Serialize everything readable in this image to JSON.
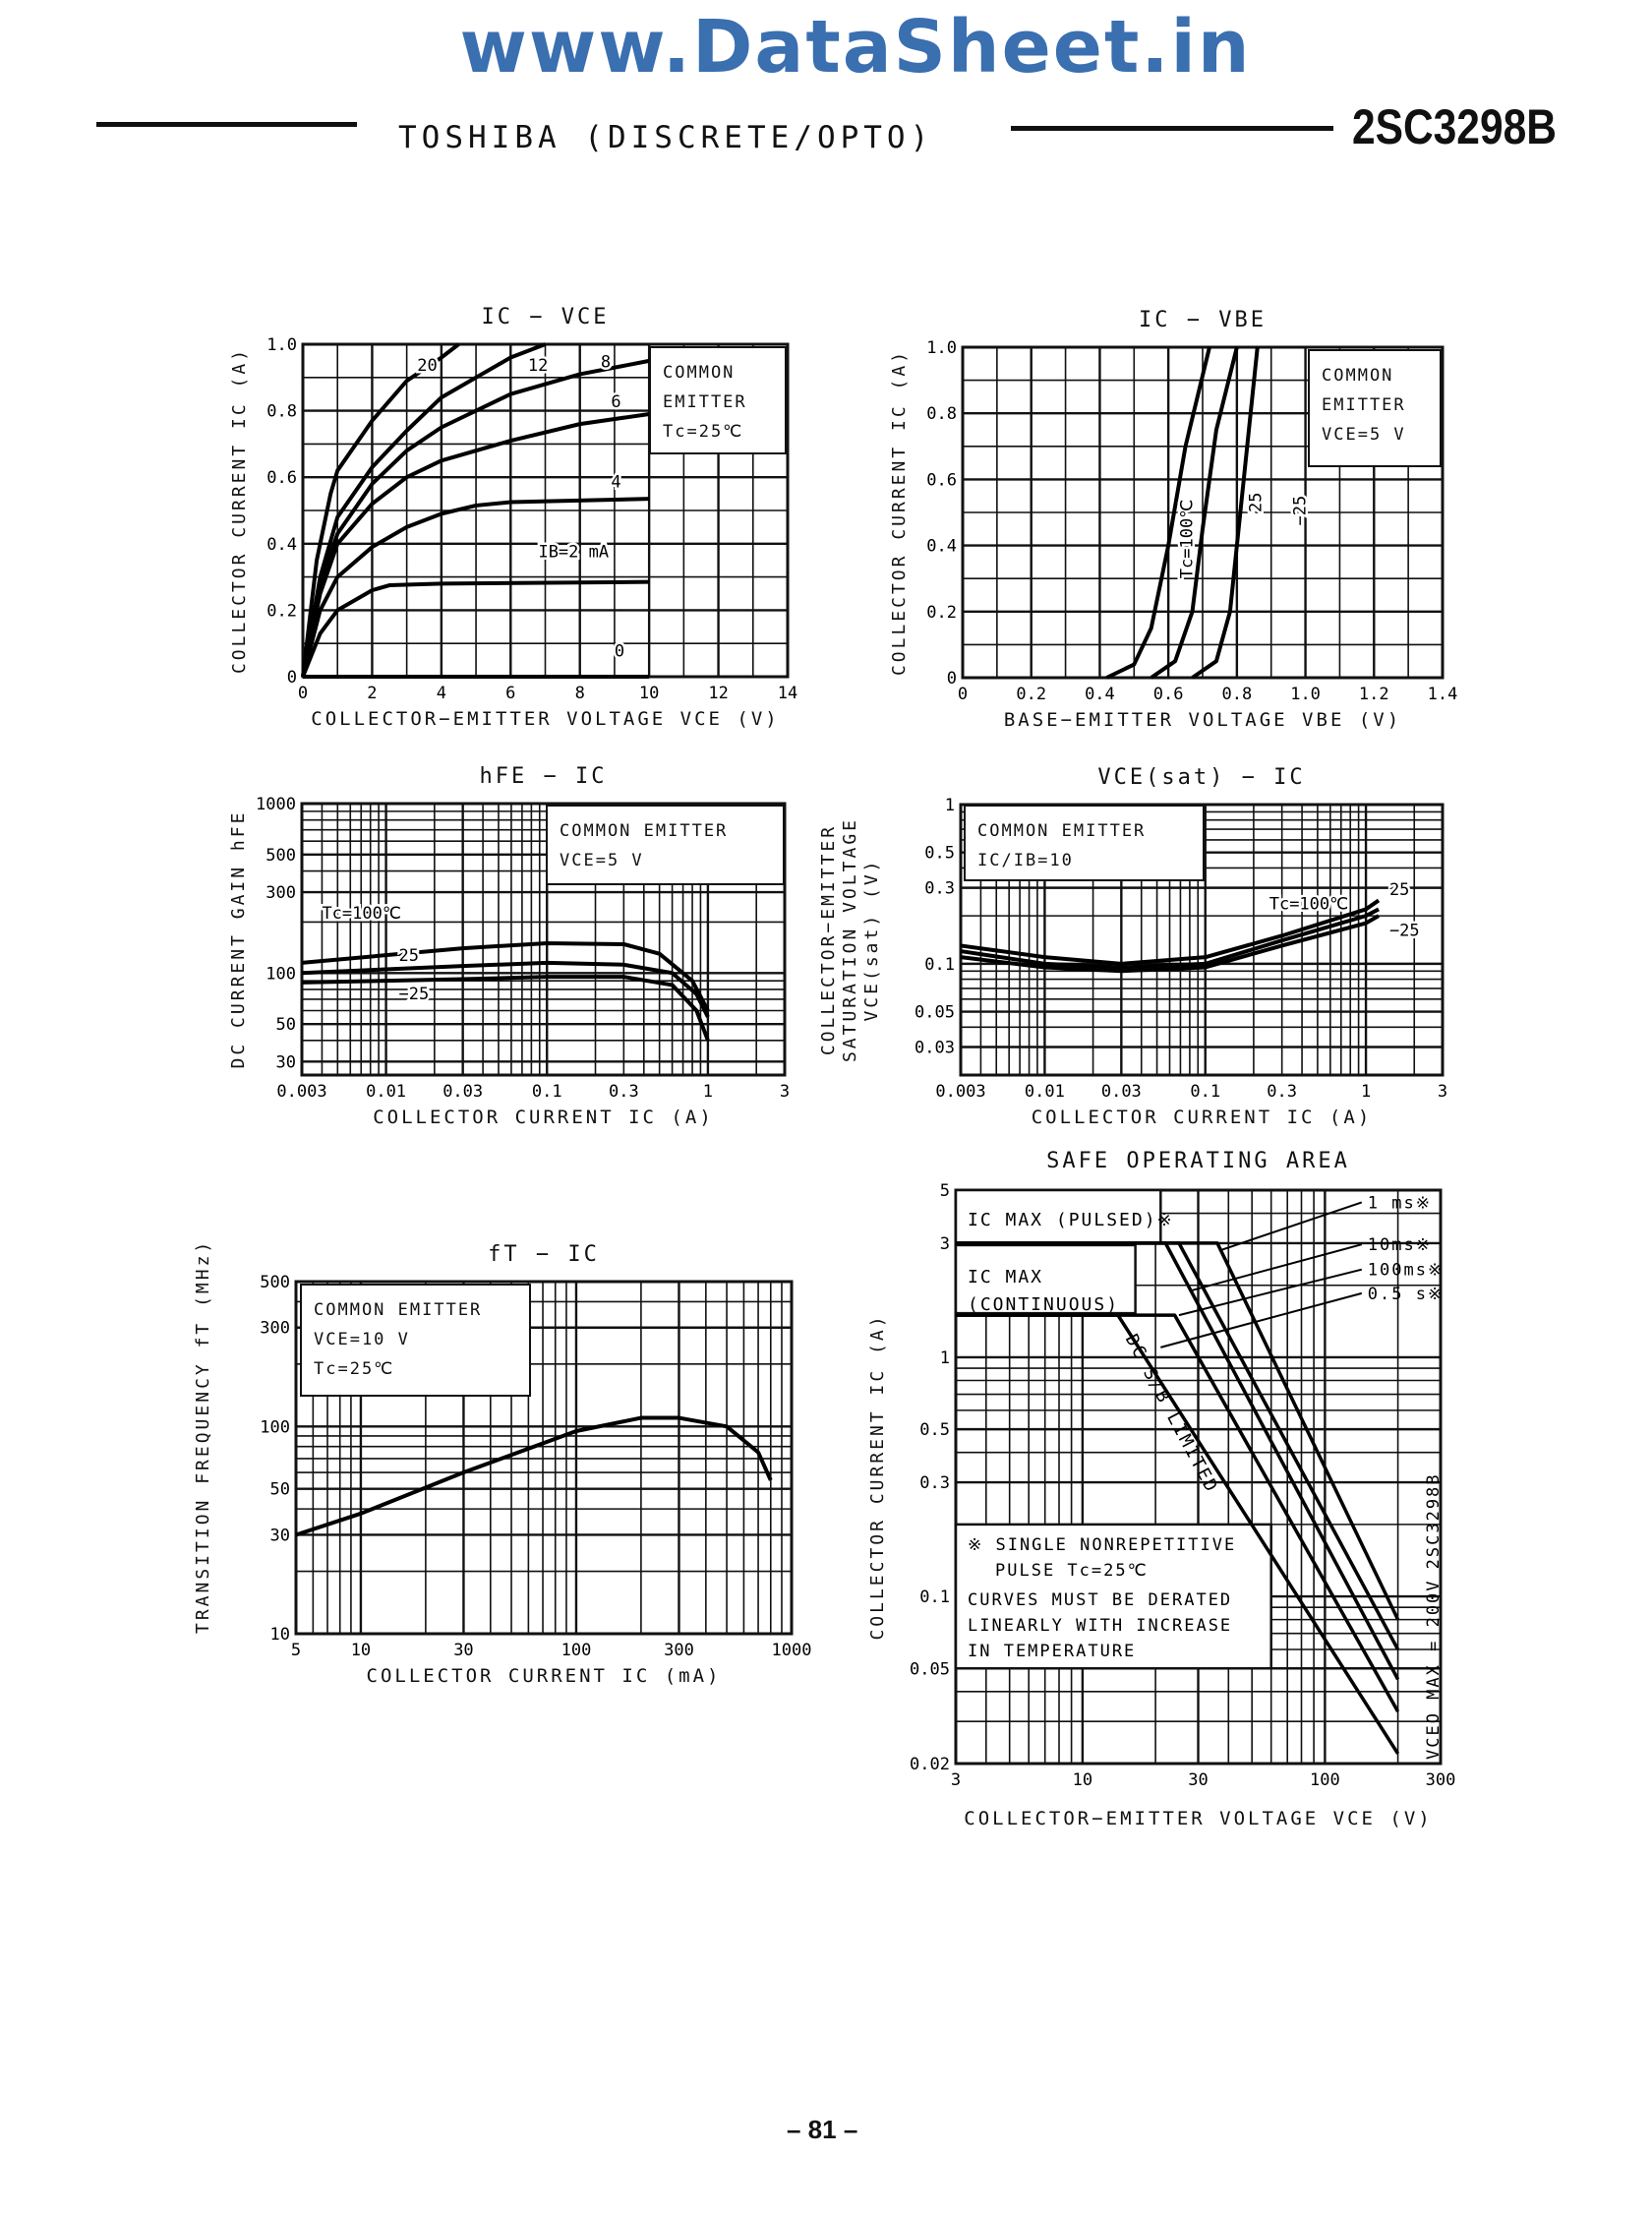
{
  "header": {
    "site": "www.DataSheet.in",
    "maker": "TOSHIBA (DISCRETE/OPTO)",
    "part": "2SC3298B"
  },
  "footer": {
    "page": "– 81 –"
  },
  "chart_data": [
    {
      "type": "line",
      "title": "IC − VCE",
      "xlabel": "COLLECTOR−EMITTER VOLTAGE  VCE (V)",
      "ylabel": "COLLECTOR CURRENT  IC (A)",
      "xscale": "linear",
      "yscale": "linear",
      "xlim": [
        0,
        14
      ],
      "ylim": [
        0,
        1.0
      ],
      "grid": true,
      "xticks": [
        0,
        2,
        4,
        6,
        8,
        10,
        12,
        14
      ],
      "xtick_labels": [
        "0",
        "2",
        "4",
        "6",
        "8",
        "10",
        "12",
        "14"
      ],
      "yticks": [
        0,
        0.2,
        0.4,
        0.6,
        0.8,
        1.0
      ],
      "ytick_labels": [
        "0",
        "0.2",
        "0.4",
        "0.6",
        "0.8",
        "1.0"
      ],
      "legend": [
        "COMMON",
        "EMITTER",
        "Tc=25℃"
      ],
      "series": [
        {
          "name": "20",
          "x": [
            0,
            0.4,
            0.8,
            1,
            2,
            3,
            4,
            4.5
          ],
          "y": [
            0,
            0.35,
            0.55,
            0.62,
            0.77,
            0.89,
            0.96,
            1.0
          ]
        },
        {
          "name": "12",
          "x": [
            0,
            0.5,
            1,
            2,
            3,
            4,
            6,
            7
          ],
          "y": [
            0,
            0.3,
            0.48,
            0.63,
            0.74,
            0.84,
            0.96,
            1.0
          ]
        },
        {
          "name": "8",
          "x": [
            0,
            0.5,
            1,
            2,
            3,
            4,
            6,
            8,
            10
          ],
          "y": [
            0,
            0.28,
            0.43,
            0.58,
            0.68,
            0.75,
            0.85,
            0.91,
            0.95
          ]
        },
        {
          "name": "6",
          "x": [
            0,
            0.5,
            1,
            2,
            3,
            4,
            6,
            8,
            10
          ],
          "y": [
            0,
            0.25,
            0.4,
            0.52,
            0.6,
            0.65,
            0.71,
            0.76,
            0.79
          ]
        },
        {
          "name": "4",
          "x": [
            0,
            0.5,
            1,
            2,
            3,
            4,
            5,
            6,
            10
          ],
          "y": [
            0,
            0.2,
            0.3,
            0.39,
            0.45,
            0.49,
            0.515,
            0.525,
            0.535
          ]
        },
        {
          "name": "IB=2 mA",
          "x": [
            0,
            0.5,
            1,
            2,
            2.5,
            4,
            10
          ],
          "y": [
            0,
            0.13,
            0.2,
            0.26,
            0.275,
            0.28,
            0.285
          ]
        },
        {
          "name": "0",
          "x": [
            0,
            10
          ],
          "y": [
            0,
            0
          ]
        }
      ]
    },
    {
      "type": "line",
      "title": "IC − VBE",
      "xlabel": "BASE−EMITTER VOLTAGE  VBE (V)",
      "ylabel": "COLLECTOR CURRENT  IC (A)",
      "xscale": "linear",
      "yscale": "linear",
      "xlim": [
        0,
        1.4
      ],
      "ylim": [
        0,
        1.0
      ],
      "grid": true,
      "xticks": [
        0,
        0.2,
        0.4,
        0.6,
        0.8,
        1.0,
        1.2,
        1.4
      ],
      "xtick_labels": [
        "0",
        "0.2",
        "0.4",
        "0.6",
        "0.8",
        "1.0",
        "1.2",
        "1.4"
      ],
      "yticks": [
        0,
        0.2,
        0.4,
        0.6,
        0.8,
        1.0
      ],
      "ytick_labels": [
        "0",
        "0.2",
        "0.4",
        "0.6",
        "0.8",
        "1.0"
      ],
      "legend": [
        "COMMON",
        "EMITTER",
        "VCE=5 V"
      ],
      "series": [
        {
          "name": "Tc=100℃",
          "x": [
            0.42,
            0.5,
            0.55,
            0.6,
            0.65,
            0.72
          ],
          "y": [
            0,
            0.04,
            0.15,
            0.4,
            0.7,
            1.0
          ]
        },
        {
          "name": "25",
          "x": [
            0.55,
            0.62,
            0.67,
            0.7,
            0.74,
            0.8
          ],
          "y": [
            0,
            0.05,
            0.2,
            0.45,
            0.75,
            1.0
          ]
        },
        {
          "name": "−25",
          "x": [
            0.67,
            0.74,
            0.78,
            0.81,
            0.84,
            0.86
          ],
          "y": [
            0,
            0.05,
            0.2,
            0.5,
            0.8,
            1.0
          ]
        }
      ]
    },
    {
      "type": "line",
      "title": "hFE − IC",
      "xlabel": "COLLECTOR CURRENT  IC (A)",
      "ylabel": "DC CURRENT GAIN  hFE",
      "xscale": "log",
      "yscale": "log",
      "xlim": [
        0.003,
        3
      ],
      "ylim": [
        25,
        1000
      ],
      "grid": true,
      "xticks": [
        0.003,
        0.01,
        0.03,
        0.1,
        0.3,
        1,
        3
      ],
      "xtick_labels": [
        "0.003",
        "0.01",
        "0.03",
        "0.1",
        "0.3",
        "1",
        "3"
      ],
      "yticks": [
        30,
        50,
        100,
        300,
        500,
        1000
      ],
      "ytick_labels": [
        "30",
        "50",
        "100",
        "300",
        "500",
        "1000"
      ],
      "legend": [
        "COMMON EMITTER",
        "VCE=5 V"
      ],
      "series": [
        {
          "name": "Tc=100℃",
          "x": [
            0.003,
            0.03,
            0.1,
            0.3,
            0.5,
            0.8,
            1
          ],
          "y": [
            115,
            140,
            150,
            148,
            130,
            90,
            60
          ]
        },
        {
          "name": "25",
          "x": [
            0.003,
            0.03,
            0.1,
            0.3,
            0.6,
            0.85,
            1
          ],
          "y": [
            100,
            110,
            115,
            112,
            100,
            75,
            55
          ]
        },
        {
          "name": "−25",
          "x": [
            0.003,
            0.03,
            0.1,
            0.3,
            0.6,
            0.85,
            1
          ],
          "y": [
            88,
            92,
            95,
            95,
            85,
            60,
            40
          ]
        }
      ]
    },
    {
      "type": "line",
      "title": "VCE(sat) − IC",
      "xlabel": "COLLECTOR CURRENT  IC (A)",
      "ylabel": "COLLECTOR−EMITTER SATURATION VOLTAGE VCE(sat) (V)",
      "xscale": "log",
      "yscale": "log",
      "xlim": [
        0.003,
        3
      ],
      "ylim": [
        0.02,
        1
      ],
      "grid": true,
      "xticks": [
        0.003,
        0.01,
        0.03,
        0.1,
        0.3,
        1,
        3
      ],
      "xtick_labels": [
        "0.003",
        "0.01",
        "0.03",
        "0.1",
        "0.3",
        "1",
        "3"
      ],
      "yticks": [
        0.03,
        0.05,
        0.1,
        0.3,
        0.5,
        1
      ],
      "ytick_labels": [
        "0.03",
        "0.05",
        "0.1",
        "0.3",
        "0.5",
        "1"
      ],
      "legend": [
        "COMMON EMITTER",
        "IC/IB=10"
      ],
      "series": [
        {
          "name": "Tc=100℃",
          "x": [
            0.003,
            0.01,
            0.03,
            0.1,
            0.3,
            1,
            1.2
          ],
          "y": [
            0.13,
            0.11,
            0.1,
            0.11,
            0.15,
            0.22,
            0.25
          ]
        },
        {
          "name": "25",
          "x": [
            0.003,
            0.01,
            0.03,
            0.1,
            0.3,
            1,
            1.2
          ],
          "y": [
            0.12,
            0.1,
            0.095,
            0.1,
            0.14,
            0.2,
            0.22
          ]
        },
        {
          "name": "−25",
          "x": [
            0.003,
            0.01,
            0.03,
            0.1,
            0.3,
            1,
            1.2
          ],
          "y": [
            0.11,
            0.095,
            0.09,
            0.095,
            0.13,
            0.18,
            0.2
          ]
        }
      ]
    },
    {
      "type": "line",
      "title": "fT − IC",
      "xlabel": "COLLECTOR CURRENT  IC (mA)",
      "ylabel": "TRANSITION FREQUENCY fT (MHz)",
      "xscale": "log",
      "yscale": "log",
      "xlim": [
        5,
        1000
      ],
      "ylim": [
        10,
        500
      ],
      "grid": true,
      "xticks": [
        5,
        10,
        30,
        100,
        300,
        1000
      ],
      "xtick_labels": [
        "5",
        "10",
        "30",
        "100",
        "300",
        "1000"
      ],
      "yticks": [
        10,
        30,
        50,
        100,
        300,
        500
      ],
      "ytick_labels": [
        "10",
        "30",
        "50",
        "100",
        "300",
        "500"
      ],
      "legend": [
        "COMMON EMITTER",
        "VCE=10 V",
        "Tc=25℃"
      ],
      "series": [
        {
          "x": [
            5,
            10,
            30,
            100,
            200,
            300,
            500,
            700,
            800
          ],
          "y": [
            30,
            38,
            60,
            95,
            110,
            110,
            100,
            75,
            55
          ]
        }
      ]
    },
    {
      "type": "line",
      "title": "SAFE OPERATING AREA",
      "xlabel": "COLLECTOR−EMITTER VOLTAGE  VCE (V)",
      "ylabel": "COLLECTOR CURRENT  IC (A)",
      "xscale": "log",
      "yscale": "log",
      "xlim": [
        3,
        300
      ],
      "ylim": [
        0.02,
        5
      ],
      "grid": true,
      "xticks": [
        3,
        10,
        30,
        100,
        300
      ],
      "xtick_labels": [
        "3",
        "10",
        "30",
        "100",
        "300"
      ],
      "yticks": [
        0.02,
        0.05,
        0.1,
        0.3,
        0.5,
        1,
        3,
        5
      ],
      "ytick_labels": [
        "0.02",
        "0.05",
        "0.1",
        "0.3",
        "0.5",
        "1",
        "3",
        "5"
      ],
      "annotations": [
        "IC MAX (PULSED)※",
        "IC MAX",
        "(CONTINUOUS)",
        "DC S/B LIMITED",
        "※ SINGLE NONREPETITIVE",
        "PULSE   Tc=25℃",
        "CURVES MUST BE DERATED",
        "LINEARLY WITH INCREASE",
        "IN TEMPERATURE",
        "VCEO MAX = 200V",
        "2SC3298B"
      ],
      "series": [
        {
          "name": "1 ms※",
          "x": [
            3,
            36,
            200
          ],
          "y": [
            3,
            3,
            0.08
          ]
        },
        {
          "name": "10ms※",
          "x": [
            3,
            25,
            200
          ],
          "y": [
            3,
            3,
            0.06
          ]
        },
        {
          "name": "100ms※",
          "x": [
            3,
            22,
            200
          ],
          "y": [
            3,
            3,
            0.045
          ]
        },
        {
          "name": "0.5 s※",
          "x": [
            3,
            24,
            200
          ],
          "y": [
            1.5,
            1.5,
            0.033
          ]
        },
        {
          "name": "DC",
          "x": [
            3,
            14,
            200
          ],
          "y": [
            1.5,
            1.5,
            0.022
          ]
        }
      ]
    }
  ]
}
